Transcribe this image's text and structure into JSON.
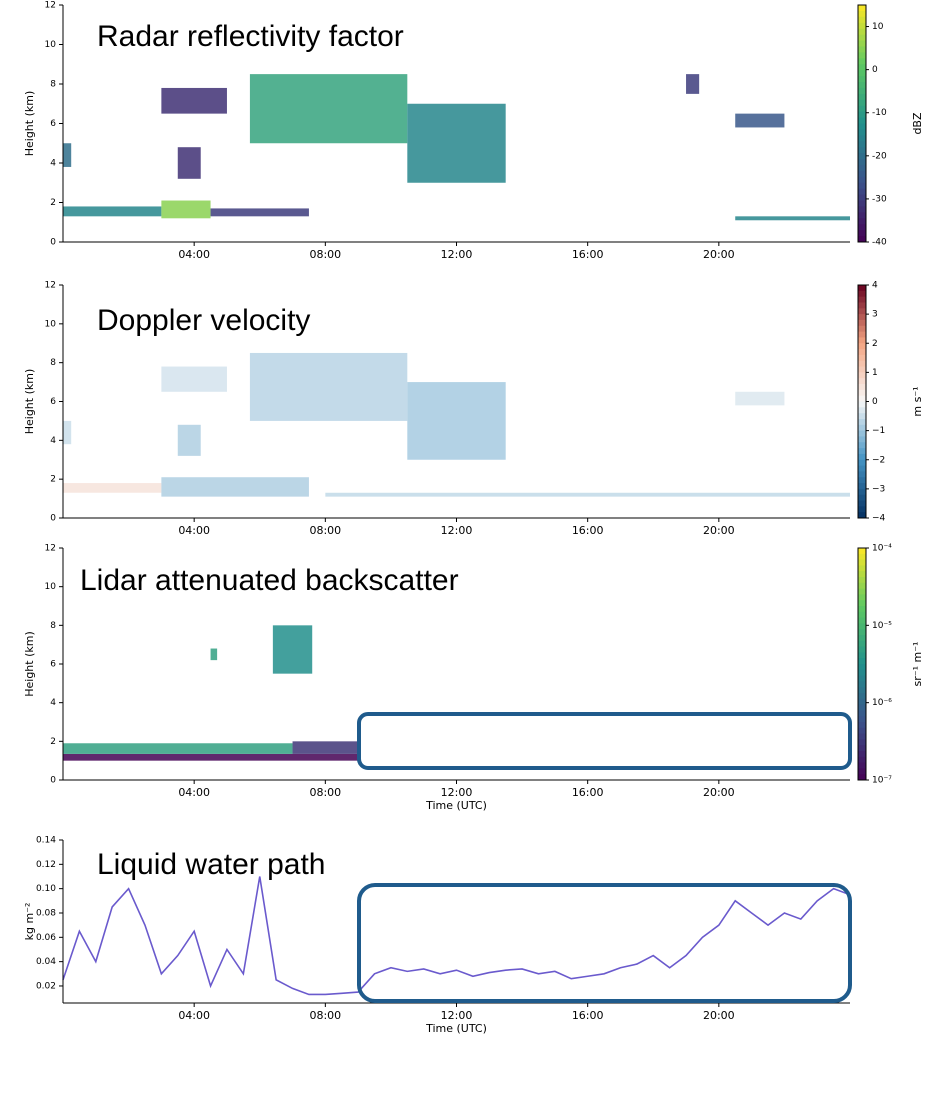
{
  "chart_data": [
    {
      "type": "heatmap",
      "title": "Radar reflectivity factor",
      "ylabel": "Height (km)",
      "xlim": [
        0,
        24
      ],
      "xticks": [
        {
          "value": 4,
          "label": "04:00"
        },
        {
          "value": 8,
          "label": "08:00"
        },
        {
          "value": 12,
          "label": "12:00"
        },
        {
          "value": 16,
          "label": "16:00"
        },
        {
          "value": 20,
          "label": "20:00"
        }
      ],
      "ylim": [
        0,
        12
      ],
      "yticks": [
        0,
        2,
        4,
        6,
        8,
        10,
        12
      ],
      "colorbar": {
        "label": "dBZ",
        "cmap": "viridis",
        "log": false,
        "lim": [
          -40,
          15
        ],
        "ticks": [
          -40,
          -30,
          -20,
          -10,
          0,
          10
        ]
      },
      "regions": [
        {
          "x": [
            0,
            0.25
          ],
          "y": [
            3.8,
            5
          ],
          "value": -20
        },
        {
          "x": [
            0,
            3
          ],
          "y": [
            1.3,
            1.8
          ],
          "value": -15
        },
        {
          "x": [
            3,
            4.5
          ],
          "y": [
            1.2,
            2.1
          ],
          "value": 5
        },
        {
          "x": [
            4.5,
            7.5
          ],
          "y": [
            1.3,
            1.7
          ],
          "value": -30
        },
        {
          "x": [
            3.5,
            4.2
          ],
          "y": [
            3.2,
            4.8
          ],
          "value": -32
        },
        {
          "x": [
            3,
            5
          ],
          "y": [
            6.5,
            7.8
          ],
          "value": -32
        },
        {
          "x": [
            5.7,
            10.5
          ],
          "y": [
            5,
            8.5
          ],
          "value": -8
        },
        {
          "x": [
            10.5,
            13.5
          ],
          "y": [
            3,
            7
          ],
          "value": -15
        },
        {
          "x": [
            19,
            19.4
          ],
          "y": [
            7.5,
            8.5
          ],
          "value": -30
        },
        {
          "x": [
            20.5,
            22
          ],
          "y": [
            5.8,
            6.5
          ],
          "value": -25
        },
        {
          "x": [
            20.5,
            24
          ],
          "y": [
            1.1,
            1.3
          ],
          "value": -15
        }
      ]
    },
    {
      "type": "heatmap",
      "title": "Doppler velocity",
      "ylabel": "Height (km)",
      "xlim": [
        0,
        24
      ],
      "xticks": [
        {
          "value": 4,
          "label": "04:00"
        },
        {
          "value": 8,
          "label": "08:00"
        },
        {
          "value": 12,
          "label": "12:00"
        },
        {
          "value": 16,
          "label": "16:00"
        },
        {
          "value": 20,
          "label": "20:00"
        }
      ],
      "ylim": [
        0,
        12
      ],
      "yticks": [
        0,
        2,
        4,
        6,
        8,
        10,
        12
      ],
      "colorbar": {
        "label": "m s⁻¹",
        "cmap": "RdBu_r",
        "log": false,
        "lim": [
          -4,
          4
        ],
        "ticks": [
          {
            "value": -4,
            "label": "−4"
          },
          {
            "value": -3,
            "label": "−3"
          },
          {
            "value": -2,
            "label": "−2"
          },
          {
            "value": -1,
            "label": "−1"
          },
          0,
          1,
          2,
          3,
          4
        ]
      },
      "regions": [
        {
          "x": [
            0,
            0.25
          ],
          "y": [
            3.8,
            5
          ],
          "value": -0.5
        },
        {
          "x": [
            0,
            3
          ],
          "y": [
            1.3,
            1.8
          ],
          "value": 0.5
        },
        {
          "x": [
            3,
            7.5
          ],
          "y": [
            1.1,
            2.1
          ],
          "value": -0.8
        },
        {
          "x": [
            3.5,
            4.2
          ],
          "y": [
            3.2,
            4.8
          ],
          "value": -0.8
        },
        {
          "x": [
            3,
            5
          ],
          "y": [
            6.5,
            7.8
          ],
          "value": -0.4
        },
        {
          "x": [
            5.7,
            10.5
          ],
          "y": [
            5,
            8.5
          ],
          "value": -0.7
        },
        {
          "x": [
            10.5,
            13.5
          ],
          "y": [
            3,
            7
          ],
          "value": -0.9
        },
        {
          "x": [
            20.5,
            22
          ],
          "y": [
            5.8,
            6.5
          ],
          "value": -0.3
        },
        {
          "x": [
            8,
            24
          ],
          "y": [
            1.1,
            1.3
          ],
          "value": -0.6
        }
      ]
    },
    {
      "type": "heatmap",
      "title": "Lidar attenuated backscatter",
      "ylabel": "Height (km)",
      "xlabel": "Time (UTC)",
      "xlim": [
        0,
        24
      ],
      "xticks": [
        {
          "value": 4,
          "label": "04:00"
        },
        {
          "value": 8,
          "label": "08:00"
        },
        {
          "value": 12,
          "label": "12:00"
        },
        {
          "value": 16,
          "label": "16:00"
        },
        {
          "value": 20,
          "label": "20:00"
        }
      ],
      "ylim": [
        0,
        12
      ],
      "yticks": [
        0,
        2,
        4,
        6,
        8,
        10,
        12
      ],
      "colorbar": {
        "label": "sr⁻¹ m⁻¹",
        "cmap": "viridis",
        "log": true,
        "lim": [
          1e-07,
          0.0001
        ],
        "ticks": [
          {
            "value": 1e-07,
            "label": "10⁻⁷"
          },
          {
            "value": 1e-06,
            "label": "10⁻⁶"
          },
          {
            "value": 1e-05,
            "label": "10⁻⁵"
          },
          {
            "value": 0.0001,
            "label": "10⁻⁴"
          }
        ]
      },
      "regions": [
        {
          "x": [
            0,
            9
          ],
          "y": [
            1.0,
            1.35
          ],
          "value": 1e-07
        },
        {
          "x": [
            0,
            7
          ],
          "y": [
            1.35,
            1.9
          ],
          "value": 5e-06
        },
        {
          "x": [
            7,
            9
          ],
          "y": [
            1.35,
            2.0
          ],
          "value": 3e-07
        },
        {
          "x": [
            4.5,
            4.7
          ],
          "y": [
            6.2,
            6.8
          ],
          "value": 5e-06
        },
        {
          "x": [
            6.4,
            7.6
          ],
          "y": [
            5.5,
            8
          ],
          "value": 3e-06
        }
      ]
    },
    {
      "type": "line",
      "title": "Liquid water path",
      "ylabel": "kg m⁻²",
      "xlabel": "Time (UTC)",
      "color": "#6a5acd",
      "xlim": [
        0,
        24
      ],
      "xticks": [
        {
          "value": 4,
          "label": "04:00"
        },
        {
          "value": 8,
          "label": "08:00"
        },
        {
          "value": 12,
          "label": "12:00"
        },
        {
          "value": 16,
          "label": "16:00"
        },
        {
          "value": 20,
          "label": "20:00"
        }
      ],
      "ylim": [
        0.006,
        0.14
      ],
      "yticks": [
        0.02,
        0.04,
        0.06,
        0.08,
        {
          "value": 0.1,
          "label": "0.10"
        },
        0.12,
        0.14
      ],
      "x": [
        0,
        0.5,
        1,
        1.5,
        2,
        2.5,
        3,
        3.5,
        4,
        4.5,
        5,
        5.5,
        6,
        6.5,
        7,
        7.5,
        8,
        8.5,
        9,
        9.5,
        10,
        10.5,
        11,
        11.5,
        12,
        12.5,
        13,
        13.5,
        14,
        14.5,
        15,
        15.5,
        16,
        16.5,
        17,
        17.5,
        18,
        18.5,
        19,
        19.5,
        20,
        20.5,
        21,
        21.5,
        22,
        22.5,
        23,
        23.5,
        24
      ],
      "values": [
        0.025,
        0.065,
        0.04,
        0.085,
        0.1,
        0.07,
        0.03,
        0.045,
        0.065,
        0.02,
        0.05,
        0.03,
        0.11,
        0.025,
        0.018,
        0.013,
        0.013,
        0.014,
        0.015,
        0.03,
        0.035,
        0.032,
        0.034,
        0.03,
        0.033,
        0.028,
        0.031,
        0.033,
        0.034,
        0.03,
        0.032,
        0.026,
        0.028,
        0.03,
        0.035,
        0.038,
        0.045,
        0.035,
        0.045,
        0.06,
        0.07,
        0.09,
        0.08,
        0.07,
        0.08,
        0.075,
        0.09,
        0.1,
        0.095
      ]
    }
  ]
}
